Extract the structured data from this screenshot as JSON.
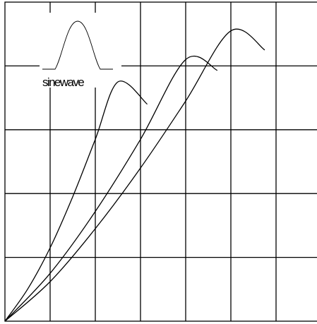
{
  "chart_data": {
    "type": "line",
    "title": "",
    "xlabel": "",
    "ylabel": "",
    "xlim": [
      0,
      7
    ],
    "ylim": [
      0,
      5
    ],
    "grid": true,
    "x_gridlines": 7,
    "y_gridlines": 5,
    "series": [
      {
        "x": [
          0,
          0.5,
          1,
          1.5,
          2,
          2.5,
          3.15
        ],
        "y": [
          0,
          0.5,
          1.15,
          1.95,
          2.85,
          3.75,
          3.4
        ]
      },
      {
        "x": [
          0,
          1,
          2,
          3,
          4,
          4.7
        ],
        "y": [
          0,
          0.75,
          1.72,
          2.85,
          4.1,
          3.93
        ]
      },
      {
        "x": [
          0,
          1,
          2,
          3,
          4,
          5,
          5.75
        ],
        "y": [
          0,
          0.62,
          1.45,
          2.4,
          3.45,
          4.55,
          4.25
        ]
      }
    ],
    "inset": {
      "label": "sinewave",
      "icon": "bell-pulse-icon",
      "position": "top-left"
    }
  },
  "colors": {
    "background": "#ffffff",
    "line": "#000000"
  }
}
